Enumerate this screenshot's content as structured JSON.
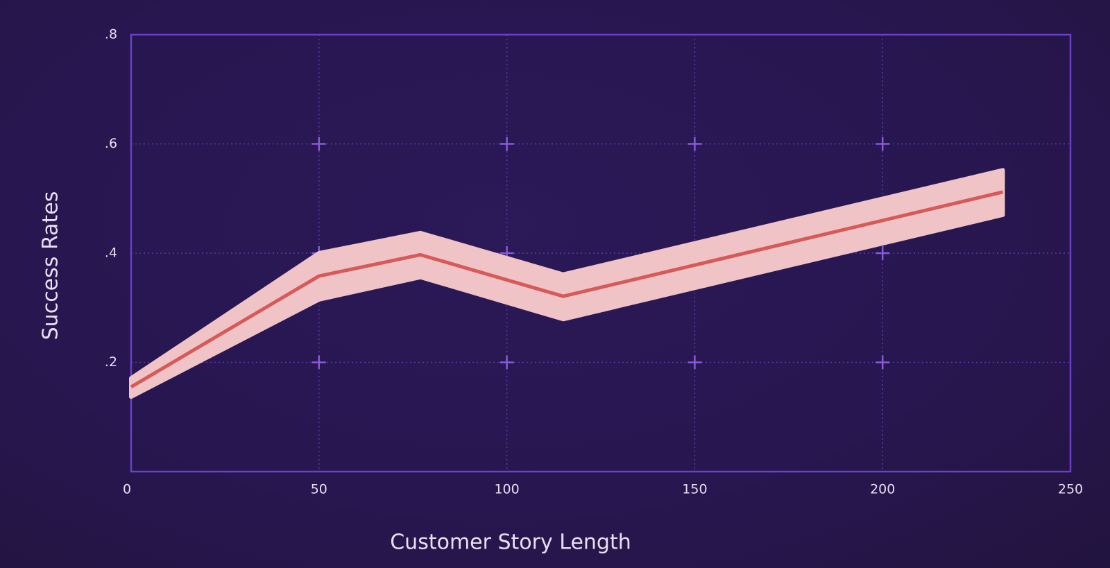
{
  "chart_data": {
    "type": "line",
    "x_label": "Customer Story Length",
    "y_label": "Success Rates",
    "x": [
      0,
      50,
      77,
      115,
      232
    ],
    "series": [
      {
        "color": "#d65a5a",
        "band_color": "#f0c3c6",
        "values": [
          0.155,
          0.358,
          0.397,
          0.321,
          0.512
        ],
        "lower": [
          0.137,
          0.315,
          0.356,
          0.279,
          0.47
        ],
        "upper": [
          0.171,
          0.4,
          0.437,
          0.361,
          0.552
        ]
      }
    ],
    "xlim": [
      0,
      250
    ],
    "xticks": [
      0,
      50,
      100,
      150,
      200,
      250
    ],
    "ylim": [
      0,
      0.8
    ],
    "yticks": [
      {
        "value": 0.2,
        "label": ".2"
      },
      {
        "value": 0.4,
        "label": ".4"
      },
      {
        "value": 0.6,
        "label": ".6"
      },
      {
        "value": 0.8,
        "label": ".8"
      }
    ],
    "grid": true
  }
}
